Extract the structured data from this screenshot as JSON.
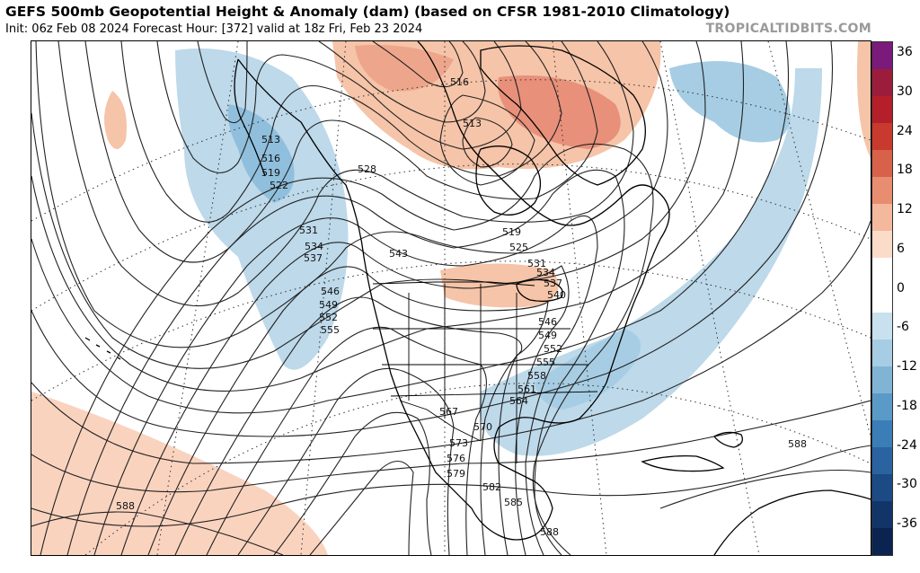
{
  "header": {
    "title": "GEFS 500mb Geopotential Height & Anomaly (dam) (based on CFSR 1981-2010 Climatology)",
    "subtitle": "Init: 06z Feb 08 2024   Forecast Hour: [372]   valid at 18z Fri, Feb 23 2024",
    "brand": "TROPICALTIDBITS.COM"
  },
  "colorbar": {
    "ticks": [
      "36",
      "30",
      "24",
      "18",
      "12",
      "6",
      "0",
      "-6",
      "-12",
      "-18",
      "-24",
      "-30",
      "-36"
    ],
    "colors": [
      "#7a1a7a",
      "#9c1c3c",
      "#b51f2a",
      "#c8392e",
      "#d8614a",
      "#e88d70",
      "#f4b89c",
      "#fbdcc9",
      "#ffffff",
      "#ffffff",
      "#c9e1ee",
      "#a6cde3",
      "#7fb4d5",
      "#5a9ac6",
      "#3b7db6",
      "#2a63a0",
      "#1c4a85",
      "#123569",
      "#0a2350"
    ]
  },
  "contour_labels": [
    "513",
    "516",
    "519",
    "522",
    "528",
    "531",
    "534",
    "537",
    "543",
    "546",
    "549",
    "552",
    "555",
    "519",
    "525",
    "531",
    "534",
    "537",
    "540",
    "546",
    "549",
    "552",
    "555",
    "558",
    "561",
    "564",
    "567",
    "570",
    "573",
    "576",
    "579",
    "582",
    "585",
    "588",
    "588",
    "588",
    "516",
    "513"
  ]
}
